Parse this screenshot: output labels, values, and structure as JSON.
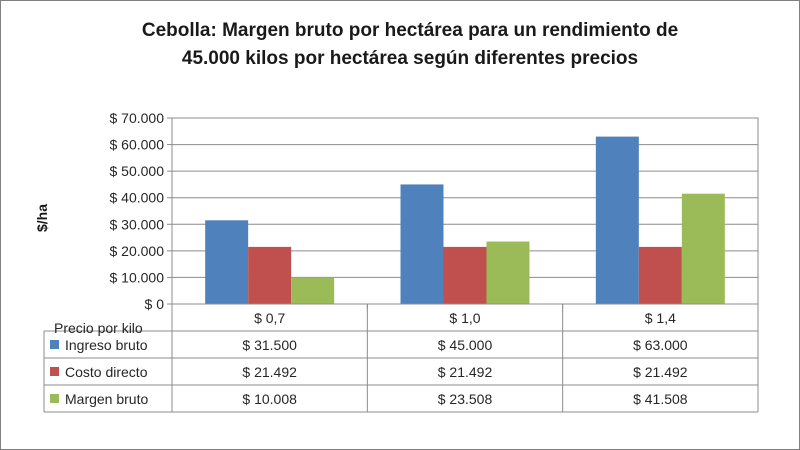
{
  "chart_data": {
    "type": "bar",
    "title": "Cebolla: Margen bruto por hectárea para un rendimiento de 45.000 kilos por hectárea según diferentes precios",
    "title_lines": [
      "Cebolla: Margen bruto por hectárea para un rendimiento de",
      "45.000 kilos por hectárea según diferentes precios"
    ],
    "ylabel": "$/ha",
    "xlabel": "Precio por kilo",
    "categories": [
      "$ 0,7",
      "$ 1,0",
      "$ 1,4"
    ],
    "ylim": [
      0,
      70000
    ],
    "yticks": [
      0,
      10000,
      20000,
      30000,
      40000,
      50000,
      60000,
      70000
    ],
    "ytick_labels": [
      "$ 0",
      "$ 10.000",
      "$ 20.000",
      "$ 30.000",
      "$ 40.000",
      "$ 50.000",
      "$ 60.000",
      "$ 70.000"
    ],
    "grid": true,
    "legend": "data-table",
    "series": [
      {
        "name": "Ingreso bruto",
        "color": "#4f81bd",
        "values": [
          31500,
          45000,
          63000
        ],
        "value_labels": [
          "$ 31.500",
          "$ 45.000",
          "$ 63.000"
        ]
      },
      {
        "name": "Costo directo",
        "color": "#c0504d",
        "values": [
          21492,
          21492,
          21492
        ],
        "value_labels": [
          "$ 21.492",
          "$ 21.492",
          "$ 21.492"
        ]
      },
      {
        "name": "Margen bruto",
        "color": "#9bbb59",
        "values": [
          10008,
          23508,
          41508
        ],
        "value_labels": [
          "$ 10.008",
          "$ 23.508",
          "$ 41.508"
        ]
      }
    ]
  }
}
